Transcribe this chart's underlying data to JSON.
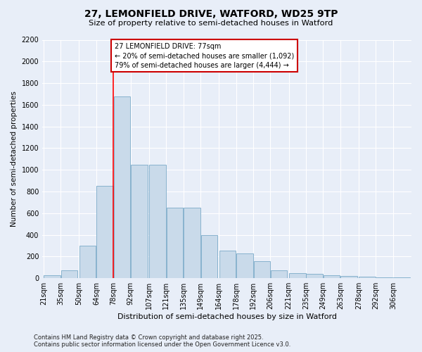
{
  "title1": "27, LEMONFIELD DRIVE, WATFORD, WD25 9TP",
  "title2": "Size of property relative to semi-detached houses in Watford",
  "xlabel": "Distribution of semi-detached houses by size in Watford",
  "ylabel": "Number of semi-detached properties",
  "footer1": "Contains HM Land Registry data © Crown copyright and database right 2025.",
  "footer2": "Contains public sector information licensed under the Open Government Licence v3.0.",
  "annotation_title": "27 LEMONFIELD DRIVE: 77sqm",
  "annotation_line1": "← 20% of semi-detached houses are smaller (1,092)",
  "annotation_line2": "79% of semi-detached houses are larger (4,444) →",
  "bar_labels": [
    "21sqm",
    "35sqm",
    "50sqm",
    "64sqm",
    "78sqm",
    "92sqm",
    "107sqm",
    "121sqm",
    "135sqm",
    "149sqm",
    "164sqm",
    "178sqm",
    "192sqm",
    "206sqm",
    "221sqm",
    "235sqm",
    "249sqm",
    "263sqm",
    "278sqm",
    "292sqm",
    "306sqm"
  ],
  "bar_lefts": [
    21,
    35,
    50,
    64,
    78,
    92,
    107,
    121,
    135,
    149,
    164,
    178,
    192,
    206,
    221,
    235,
    249,
    263,
    278,
    292,
    306
  ],
  "bar_widths": [
    14,
    14,
    14,
    14,
    14,
    14,
    14,
    14,
    14,
    14,
    14,
    14,
    14,
    14,
    14,
    14,
    14,
    14,
    14,
    14,
    14
  ],
  "bar_heights": [
    30,
    75,
    300,
    850,
    1680,
    1050,
    1050,
    650,
    650,
    400,
    255,
    230,
    155,
    75,
    50,
    40,
    30,
    20,
    15,
    8,
    5
  ],
  "bar_color": "#c9daea",
  "bar_edge_color": "#7aaac8",
  "red_line_x": 78,
  "ylim": [
    0,
    2200
  ],
  "yticks": [
    0,
    200,
    400,
    600,
    800,
    1000,
    1200,
    1400,
    1600,
    1800,
    2000,
    2200
  ],
  "bg_color": "#e8eef8",
  "grid_color": "#ffffff",
  "annotation_box_color": "#cc0000"
}
